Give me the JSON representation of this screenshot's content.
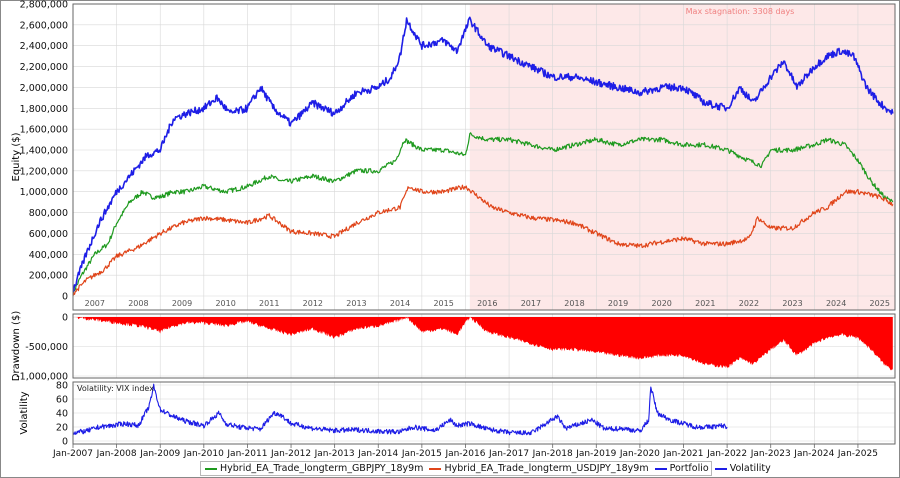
{
  "colors": {
    "gbpjpy": "#1f9a1f",
    "usdjpy": "#e0451a",
    "portfolio": "#1e1ee6",
    "volatility": "#1e1ee6",
    "drawdown": "#ff0000",
    "stagnation_fill": "#fde8e8",
    "stagnation_label": "#f08080",
    "grid": "#d8d8d8"
  },
  "chart_data": [
    {
      "type": "line",
      "panel": "equity",
      "ylabel": "Equity ($)",
      "ylim": [
        0,
        2800000
      ],
      "y_ticks": [
        "0",
        "200,000",
        "400,000",
        "600,000",
        "800,000",
        "1,000,000",
        "1,200,000",
        "1,400,000",
        "1,600,000",
        "1,800,000",
        "2,000,000",
        "2,200,000",
        "2,400,000",
        "2,600,000",
        "2,800,000"
      ],
      "year_labels": [
        "2007",
        "2008",
        "2009",
        "2010",
        "2011",
        "2012",
        "2013",
        "2014",
        "2015",
        "2016",
        "2017",
        "2018",
        "2019",
        "2020",
        "2021",
        "2022",
        "2023",
        "2024",
        "2025"
      ],
      "annotation": "Max stagnation: 3308 days",
      "stagnation_start": 2016.1,
      "series": [
        {
          "name": "Hybrid_EA_Trade_longterm_GBPJPY_18y9m",
          "color_key": "gbpjpy",
          "x": [
            2007.0,
            2007.2,
            2007.5,
            2007.8,
            2008.0,
            2008.3,
            2008.6,
            2008.8,
            2009.0,
            2009.3,
            2009.6,
            2010.0,
            2010.5,
            2011.0,
            2011.5,
            2011.8,
            2012.0,
            2012.5,
            2013.0,
            2013.5,
            2014.0,
            2014.4,
            2014.6,
            2015.0,
            2015.5,
            2016.0,
            2016.1,
            2016.5,
            2017.0,
            2017.5,
            2018.0,
            2018.5,
            2019.0,
            2019.5,
            2020.0,
            2020.5,
            2021.0,
            2021.5,
            2022.0,
            2022.5,
            2022.8,
            2023.0,
            2023.5,
            2024.0,
            2024.3,
            2024.7,
            2025.0,
            2025.3,
            2025.6,
            2025.8
          ],
          "y": [
            30000,
            200000,
            400000,
            500000,
            700000,
            900000,
            1000000,
            950000,
            950000,
            1000000,
            1000000,
            1050000,
            1000000,
            1050000,
            1150000,
            1100000,
            1100000,
            1150000,
            1100000,
            1200000,
            1200000,
            1300000,
            1500000,
            1400000,
            1400000,
            1350000,
            1550000,
            1500000,
            1500000,
            1450000,
            1400000,
            1450000,
            1500000,
            1450000,
            1500000,
            1500000,
            1450000,
            1450000,
            1400000,
            1300000,
            1250000,
            1400000,
            1400000,
            1450000,
            1500000,
            1450000,
            1300000,
            1100000,
            950000,
            900000
          ]
        },
        {
          "name": "Hybrid_EA_Trade_longterm_USDJPY_18y9m",
          "color_key": "usdjpy",
          "x": [
            2007.0,
            2007.3,
            2007.7,
            2008.0,
            2008.5,
            2009.0,
            2009.5,
            2010.0,
            2010.5,
            2011.0,
            2011.5,
            2012.0,
            2012.5,
            2013.0,
            2013.5,
            2014.0,
            2014.5,
            2014.7,
            2015.0,
            2015.5,
            2016.0,
            2016.3,
            2016.6,
            2017.0,
            2017.5,
            2018.0,
            2018.5,
            2019.0,
            2019.5,
            2020.0,
            2020.5,
            2021.0,
            2021.5,
            2022.0,
            2022.5,
            2022.7,
            2023.0,
            2023.5,
            2024.0,
            2024.3,
            2024.7,
            2025.0,
            2025.5,
            2025.8
          ],
          "y": [
            20000,
            150000,
            250000,
            380000,
            470000,
            600000,
            700000,
            750000,
            730000,
            700000,
            770000,
            620000,
            600000,
            570000,
            700000,
            800000,
            850000,
            1050000,
            1000000,
            1000000,
            1050000,
            950000,
            850000,
            800000,
            750000,
            730000,
            700000,
            600000,
            500000,
            480000,
            520000,
            550000,
            500000,
            500000,
            550000,
            750000,
            650000,
            650000,
            800000,
            850000,
            1000000,
            1000000,
            950000,
            880000
          ]
        },
        {
          "name": "Portfolio",
          "color_key": "portfolio",
          "x": [
            2007.0,
            2007.3,
            2007.6,
            2008.0,
            2008.4,
            2008.7,
            2009.0,
            2009.3,
            2009.6,
            2010.0,
            2010.3,
            2010.6,
            2011.0,
            2011.3,
            2011.6,
            2012.0,
            2012.5,
            2013.0,
            2013.5,
            2014.0,
            2014.3,
            2014.5,
            2014.65,
            2015.0,
            2015.5,
            2015.8,
            2016.0,
            2016.1,
            2016.5,
            2017.0,
            2017.5,
            2018.0,
            2018.5,
            2019.0,
            2019.5,
            2020.0,
            2020.5,
            2021.0,
            2021.5,
            2022.0,
            2022.3,
            2022.6,
            2023.0,
            2023.3,
            2023.6,
            2024.0,
            2024.3,
            2024.6,
            2024.9,
            2025.2,
            2025.5,
            2025.8
          ],
          "y": [
            50000,
            400000,
            700000,
            1000000,
            1200000,
            1350000,
            1400000,
            1700000,
            1750000,
            1800000,
            1900000,
            1750000,
            1800000,
            2000000,
            1800000,
            1650000,
            1850000,
            1750000,
            1950000,
            2000000,
            2100000,
            2300000,
            2650000,
            2400000,
            2450000,
            2350000,
            2550000,
            2650000,
            2400000,
            2300000,
            2200000,
            2100000,
            2100000,
            2050000,
            2000000,
            1950000,
            2000000,
            2000000,
            1850000,
            1800000,
            2000000,
            1850000,
            2100000,
            2250000,
            2000000,
            2200000,
            2300000,
            2350000,
            2300000,
            2000000,
            1850000,
            1750000
          ]
        }
      ]
    },
    {
      "type": "area",
      "panel": "drawdown",
      "ylabel": "Drawdown ($)",
      "ylim": [
        -1000000,
        0
      ],
      "y_ticks": [
        "0",
        "-500,000",
        "-1,000,000"
      ],
      "series": [
        {
          "name": "Drawdown",
          "color_key": "drawdown",
          "x": [
            2007.0,
            2007.5,
            2008.0,
            2008.5,
            2008.8,
            2009.0,
            2009.3,
            2009.6,
            2010.0,
            2010.5,
            2010.8,
            2011.0,
            2011.5,
            2012.0,
            2012.5,
            2013.0,
            2013.5,
            2014.0,
            2014.3,
            2014.5,
            2014.65,
            2015.0,
            2015.5,
            2015.8,
            2016.0,
            2016.1,
            2016.5,
            2017.0,
            2017.5,
            2018.0,
            2018.5,
            2019.0,
            2019.5,
            2020.0,
            2020.5,
            2021.0,
            2021.5,
            2022.0,
            2022.3,
            2022.6,
            2023.0,
            2023.3,
            2023.6,
            2024.0,
            2024.3,
            2024.6,
            2025.0,
            2025.3,
            2025.6,
            2025.8
          ],
          "y": [
            0,
            -50000,
            -100000,
            -150000,
            -200000,
            -250000,
            -150000,
            -100000,
            -100000,
            -150000,
            -100000,
            -80000,
            -200000,
            -300000,
            -200000,
            -350000,
            -200000,
            -150000,
            -100000,
            -50000,
            0,
            -250000,
            -200000,
            -300000,
            -100000,
            0,
            -250000,
            -350000,
            -450000,
            -550000,
            -550000,
            -600000,
            -650000,
            -700000,
            -650000,
            -650000,
            -800000,
            -850000,
            -700000,
            -800000,
            -550000,
            -400000,
            -650000,
            -450000,
            -350000,
            -300000,
            -350000,
            -550000,
            -800000,
            -900000
          ]
        }
      ]
    },
    {
      "type": "line",
      "panel": "volatility",
      "title": "Volatility: VIX index",
      "ylabel": "Volatility",
      "ylim": [
        0,
        80
      ],
      "y_ticks": [
        "0",
        "20",
        "40",
        "60",
        "80"
      ],
      "x_ticks": [
        "Jan-2007",
        "Jan-2008",
        "Jan-2009",
        "Jan-2010",
        "Jan-2011",
        "Jan-2012",
        "Jan-2013",
        "Jan-2014",
        "Jan-2015",
        "Jan-2016",
        "Jan-2017",
        "Jan-2018",
        "Jan-2019",
        "Jan-2020",
        "Jan-2021",
        "Jan-2022",
        "Jan-2023",
        "Jan-2024",
        "Jan-2025"
      ],
      "series": [
        {
          "name": "Volatility",
          "color_key": "volatility",
          "x": [
            2007.0,
            2007.3,
            2007.6,
            2007.9,
            2008.2,
            2008.5,
            2008.75,
            2008.85,
            2009.0,
            2009.3,
            2009.6,
            2010.0,
            2010.35,
            2010.5,
            2010.8,
            2011.3,
            2011.6,
            2011.75,
            2012.0,
            2012.5,
            2013.0,
            2013.5,
            2014.0,
            2014.5,
            2014.8,
            2015.3,
            2015.65,
            2015.8,
            2016.1,
            2016.5,
            2017.0,
            2017.5,
            2018.1,
            2018.3,
            2018.9,
            2019.2,
            2019.6,
            2020.0,
            2020.2,
            2020.25,
            2020.4,
            2020.7,
            2021.0,
            2021.3,
            2021.6,
            2021.9,
            2022.0
          ],
          "y": [
            12,
            14,
            20,
            22,
            25,
            22,
            50,
            78,
            45,
            35,
            28,
            22,
            40,
            25,
            20,
            17,
            40,
            38,
            25,
            18,
            15,
            16,
            14,
            13,
            20,
            15,
            30,
            22,
            25,
            17,
            12,
            11,
            35,
            18,
            30,
            17,
            18,
            14,
            30,
            78,
            40,
            30,
            25,
            20,
            20,
            22,
            20
          ]
        }
      ]
    }
  ],
  "legend": [
    {
      "name": "Hybrid_EA_Trade_longterm_GBPJPY_18y9m",
      "color_key": "gbpjpy"
    },
    {
      "name": "Hybrid_EA_Trade_longterm_USDJPY_18y9m",
      "color_key": "usdjpy"
    },
    {
      "name": "Portfolio",
      "color_key": "portfolio"
    },
    {
      "name": "Volatility",
      "color_key": "volatility"
    }
  ]
}
